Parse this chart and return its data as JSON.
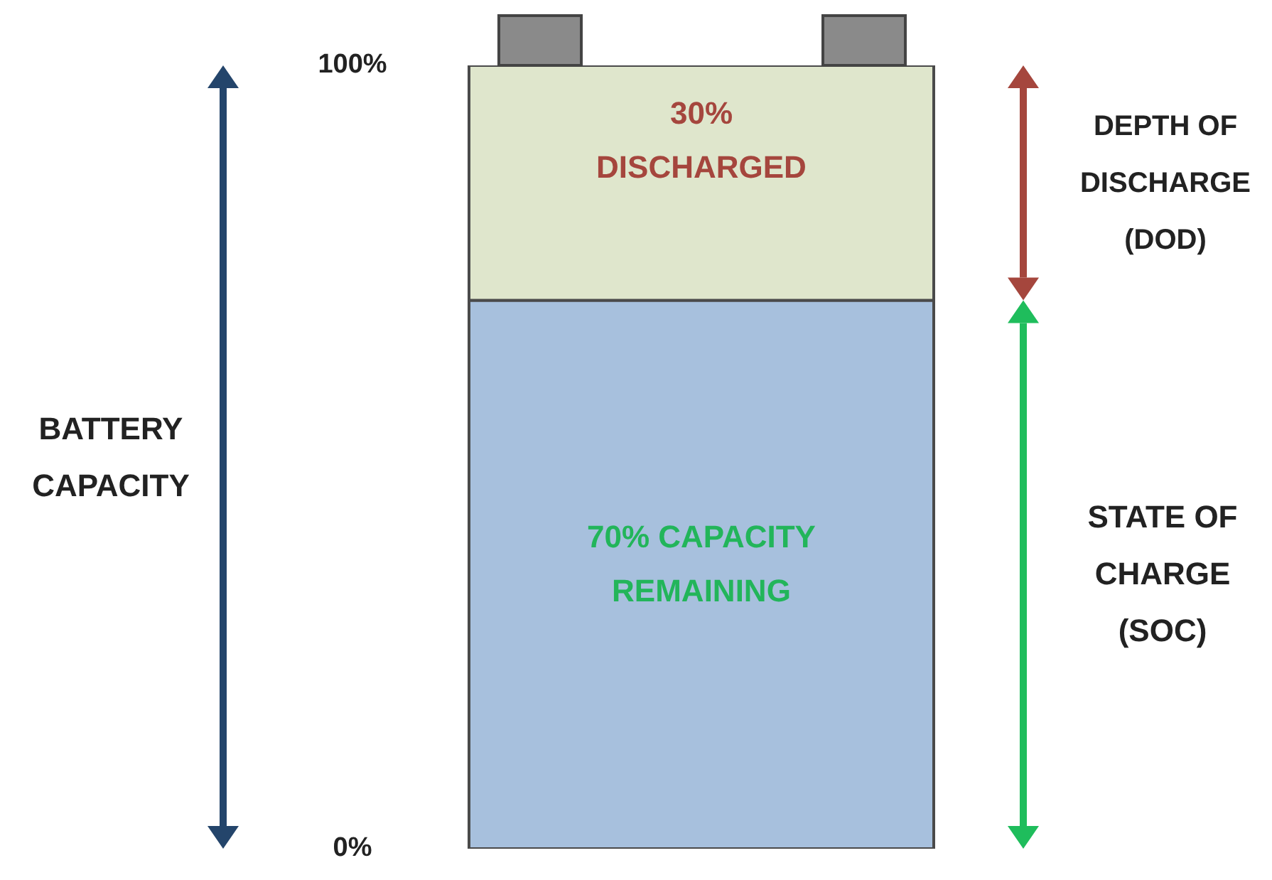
{
  "chart_data": {
    "type": "bar",
    "stacked": true,
    "categories": [
      null
    ],
    "ylim": [
      0,
      100
    ],
    "yticks": [
      {
        "value": 0,
        "label": "0%"
      },
      {
        "value": 100,
        "label": "100%"
      }
    ],
    "series": [
      {
        "color": "#a7c0dd",
        "values": [
          70
        ],
        "value_labels": [
          "70% CAPACITY REMAINING"
        ]
      },
      {
        "color": "#dfe6cc",
        "values": [
          30
        ],
        "value_labels": [
          "30% DISCHARGED"
        ]
      }
    ],
    "annotations": [
      "BATTERY CAPACITY",
      "DEPTH OF DISCHARGE (DOD)",
      "STATE OF CHARGE (SOC)"
    ]
  }
}
